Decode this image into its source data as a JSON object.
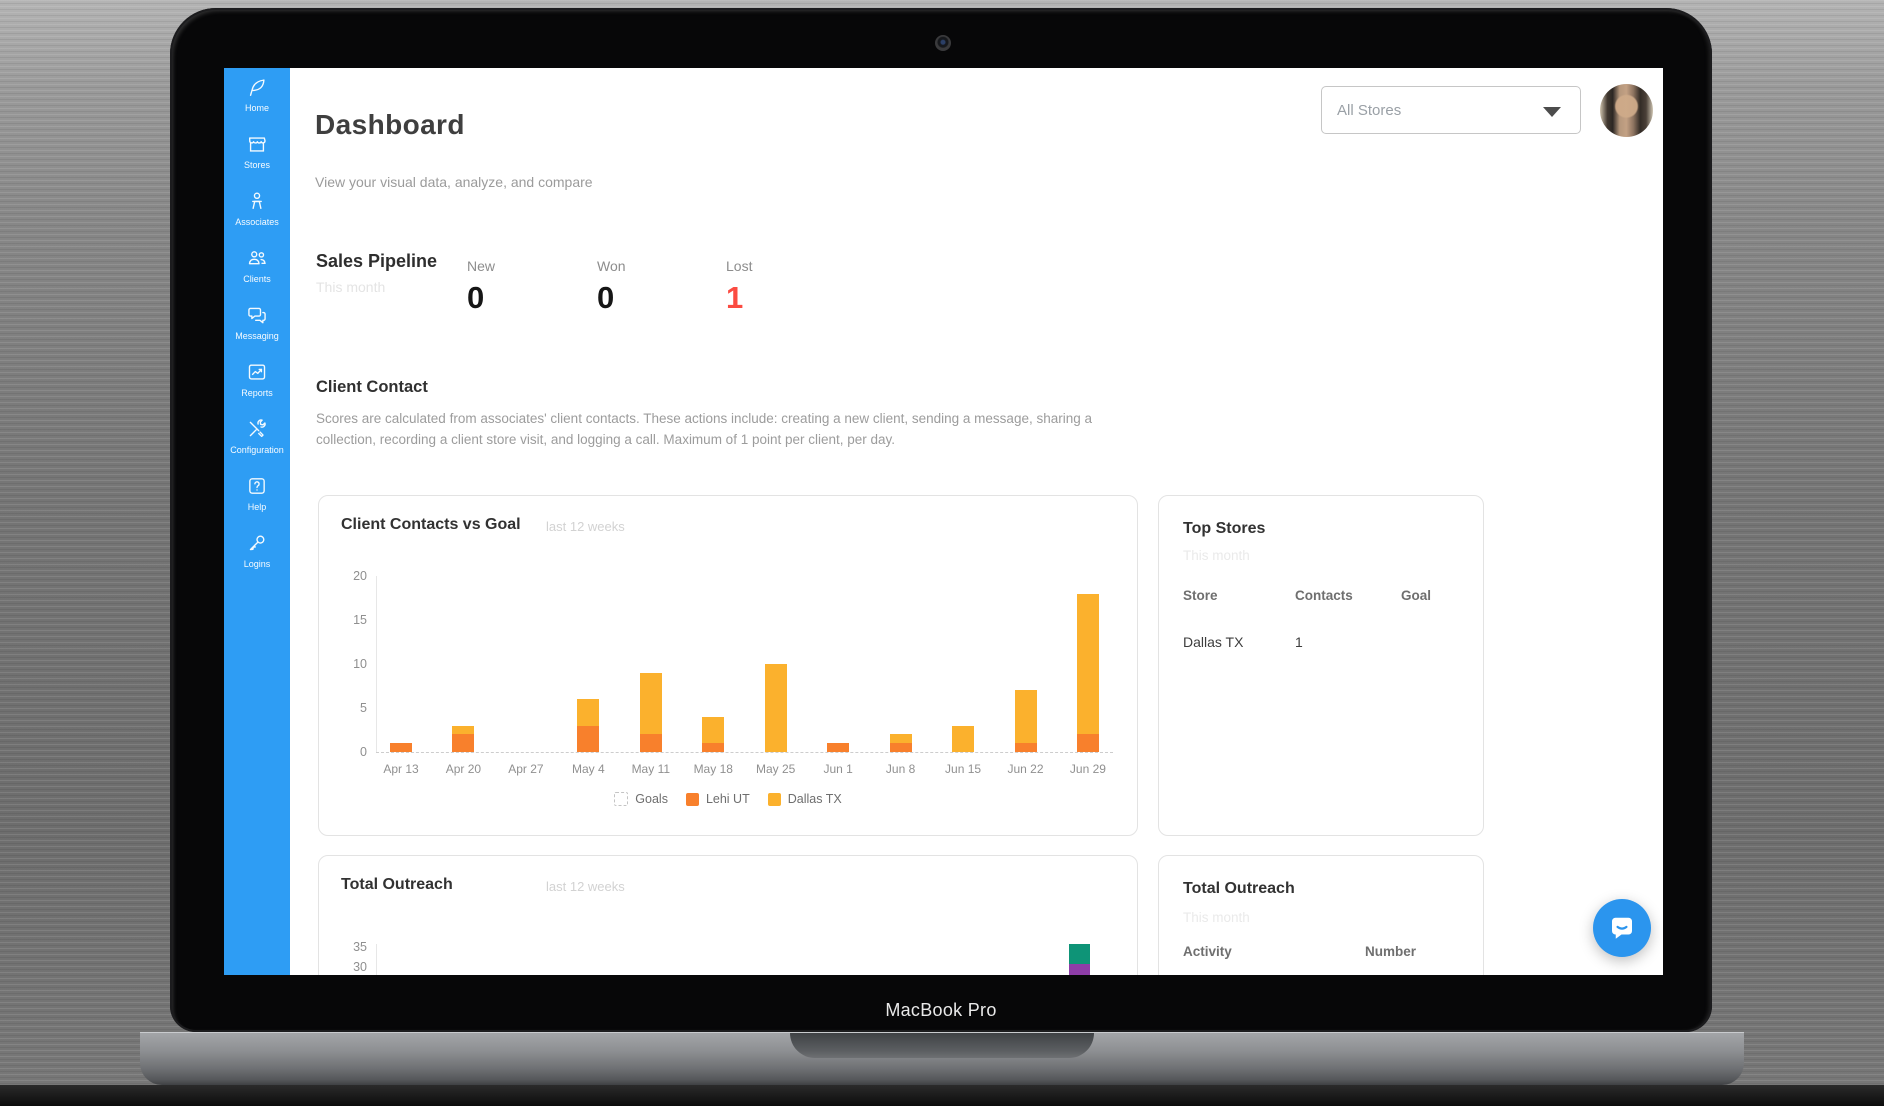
{
  "device": {
    "label": "MacBook Pro"
  },
  "colors": {
    "sidebar_blue": "#2E9DF4",
    "accent_red": "#FB4B41",
    "lehi_orange": "#F8802C",
    "dallas_amber": "#FBB12D",
    "outreach_green": "#0E9477",
    "outreach_purple": "#8E3DA8",
    "intercom_blue": "#2B95EE"
  },
  "sidebar": {
    "items": [
      {
        "label": "Home",
        "icon": "feather-icon"
      },
      {
        "label": "Stores",
        "icon": "storefront-icon"
      },
      {
        "label": "Associates",
        "icon": "associate-icon"
      },
      {
        "label": "Clients",
        "icon": "clients-icon"
      },
      {
        "label": "Messaging",
        "icon": "chat-bubbles-icon"
      },
      {
        "label": "Reports",
        "icon": "chart-report-icon"
      },
      {
        "label": "Configuration",
        "icon": "tools-icon"
      },
      {
        "label": "Help",
        "icon": "question-box-icon"
      },
      {
        "label": "Logins",
        "icon": "key-icon"
      }
    ]
  },
  "header": {
    "title": "Dashboard",
    "subtitle": "View your visual data, analyze, and compare",
    "store_filter": {
      "value": "All Stores",
      "icon": "chevron-down-icon"
    },
    "avatar": {
      "icon": "user-photo"
    }
  },
  "sales_pipeline": {
    "title": "Sales Pipeline",
    "period": "This month",
    "stats": [
      {
        "label": "New",
        "value": "0",
        "color": "#161616"
      },
      {
        "label": "Won",
        "value": "0",
        "color": "#161616"
      },
      {
        "label": "Lost",
        "value": "1",
        "color": "#FB4B41"
      }
    ]
  },
  "client_contact": {
    "title": "Client Contact",
    "description": "Scores are calculated from associates' client contacts. These actions include: creating a new client, sending a message, sharing a collection, recording a client store visit, and logging a call. Maximum of 1 point per client, per day."
  },
  "cards": {
    "contacts_vs_goal": {
      "title": "Client Contacts vs Goal",
      "subtitle": "last 12 weeks"
    },
    "top_stores": {
      "title": "Top Stores",
      "period": "This month",
      "columns": [
        "Store",
        "Contacts",
        "Goal"
      ],
      "rows": [
        [
          "Dallas TX",
          "1",
          ""
        ]
      ]
    },
    "total_outreach_chart": {
      "title": "Total Outreach",
      "subtitle": "last 12 weeks"
    },
    "total_outreach_table": {
      "title": "Total Outreach",
      "period": "This month",
      "columns": [
        "Activity",
        "Number"
      ],
      "rows": []
    }
  },
  "chart_data": [
    {
      "id": "contacts_vs_goal",
      "type": "bar",
      "stacked": true,
      "title": "Client Contacts vs Goal",
      "subtitle": "last 12 weeks",
      "categories": [
        "Apr 13",
        "Apr 20",
        "Apr 27",
        "May 4",
        "May 11",
        "May 18",
        "May 25",
        "Jun 1",
        "Jun 8",
        "Jun 15",
        "Jun 22",
        "Jun 29"
      ],
      "series": [
        {
          "name": "Lehi UT",
          "color": "#F8802C",
          "values": [
            1,
            2,
            0,
            3,
            2,
            1,
            0,
            1,
            1,
            0,
            1,
            2
          ]
        },
        {
          "name": "Dallas TX",
          "color": "#FBB12D",
          "values": [
            0,
            1,
            0,
            3,
            7,
            3,
            10,
            0,
            1,
            3,
            6,
            16
          ]
        }
      ],
      "totals": [
        1,
        3,
        0,
        6,
        9,
        4,
        10,
        1,
        2,
        3,
        7,
        18
      ],
      "goals_line": {
        "label": "Goals",
        "value": 0,
        "style": "dashed"
      },
      "ylim": [
        0,
        20
      ],
      "y_ticks": [
        0,
        5,
        10,
        15,
        20
      ],
      "grid": false,
      "legend": [
        "Goals",
        "Lehi UT",
        "Dallas TX"
      ],
      "legend_position": "bottom"
    },
    {
      "id": "total_outreach",
      "type": "bar",
      "stacked": true,
      "title": "Total Outreach",
      "subtitle": "last 12 weeks",
      "clipped": true,
      "visible_y_ticks": [
        35,
        30
      ],
      "visible_bars": [
        {
          "category": "Jun 29",
          "segments": [
            {
              "color": "#0E9477",
              "from": 29,
              "to": 34
            },
            {
              "color": "#8E3DA8",
              "to": 29,
              "clipped": true
            }
          ]
        }
      ]
    }
  ],
  "intercom": {
    "label": "chat-launcher"
  }
}
